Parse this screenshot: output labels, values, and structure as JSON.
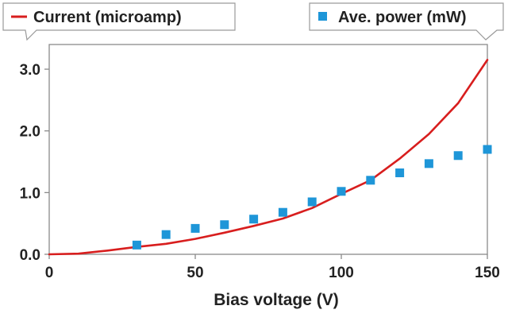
{
  "chart_data": {
    "type": "line",
    "xlabel": "Bias voltage (V)",
    "ylabel": "",
    "xlim": [
      0,
      150
    ],
    "ylim": [
      0,
      3.4
    ],
    "x_ticks": [
      "0",
      "50",
      "100",
      "150"
    ],
    "y_ticks": [
      "0.0",
      "1.0",
      "2.0",
      "3.0"
    ],
    "legend": {
      "placement": "top",
      "style": "callout-boxes"
    },
    "series": [
      {
        "name": "Current (microamp)",
        "kind": "line",
        "color": "#d81e1e",
        "x": [
          0,
          10,
          20,
          30,
          40,
          50,
          60,
          70,
          80,
          90,
          100,
          110,
          120,
          130,
          140,
          150
        ],
        "y": [
          0.0,
          0.01,
          0.06,
          0.12,
          0.17,
          0.25,
          0.35,
          0.46,
          0.58,
          0.75,
          0.98,
          1.2,
          1.55,
          1.95,
          2.45,
          3.15
        ]
      },
      {
        "name": "Ave. power (mW)",
        "kind": "scatter",
        "color": "#1e96d8",
        "x": [
          30,
          40,
          50,
          60,
          70,
          80,
          90,
          100,
          110,
          120,
          130,
          140,
          150
        ],
        "y": [
          0.15,
          0.32,
          0.42,
          0.48,
          0.57,
          0.68,
          0.85,
          1.02,
          1.2,
          1.32,
          1.47,
          1.6,
          1.7
        ]
      }
    ]
  }
}
